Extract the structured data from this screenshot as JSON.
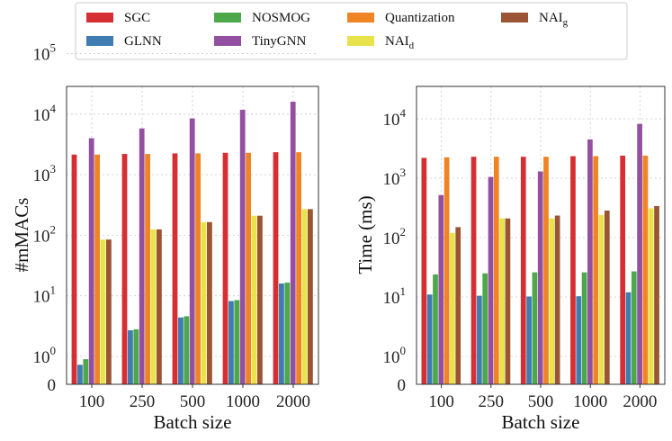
{
  "legend": [
    {
      "key": "sgc",
      "base": "SGC",
      "sub": "",
      "color": "#d62f33"
    },
    {
      "key": "glnn",
      "base": "GLNN",
      "sub": "",
      "color": "#3e7cb1"
    },
    {
      "key": "nosmog",
      "base": "NOSMOG",
      "sub": "",
      "color": "#4da84b"
    },
    {
      "key": "tinygnn",
      "base": "TinyGNN",
      "sub": "",
      "color": "#9450a0"
    },
    {
      "key": "quantization",
      "base": "Quantization",
      "sub": "",
      "color": "#f08323"
    },
    {
      "key": "nai_d",
      "base": "NAI",
      "sub": "d",
      "color": "#e8e34b"
    },
    {
      "key": "nai_g",
      "base": "NAI",
      "sub": "g",
      "color": "#9b5434"
    }
  ],
  "chart_data": [
    {
      "type": "bar",
      "title": "",
      "xlabel": "Batch size",
      "ylabel": "#mMACs",
      "yscale": "symlog",
      "ylim": [
        0,
        150000
      ],
      "yticks": [
        {
          "value": 0,
          "label": "0"
        },
        {
          "value": 1,
          "base": "10",
          "exp": "0"
        },
        {
          "value": 10,
          "base": "10",
          "exp": "1"
        },
        {
          "value": 100,
          "base": "10",
          "exp": "2"
        },
        {
          "value": 1000,
          "base": "10",
          "exp": "3"
        },
        {
          "value": 10000,
          "base": "10",
          "exp": "4"
        },
        {
          "value": 100000,
          "base": "10",
          "exp": "5"
        }
      ],
      "categories": [
        "100",
        "250",
        "500",
        "1000",
        "2000"
      ],
      "series": [
        {
          "name": "SGC",
          "values": [
            2150,
            2200,
            2250,
            2300,
            2350
          ]
        },
        {
          "name": "GLNN",
          "values": [
            0.7,
            2.7,
            4.4,
            8.2,
            16
          ]
        },
        {
          "name": "NOSMOG",
          "values": [
            0.9,
            2.8,
            4.6,
            8.5,
            16.5
          ]
        },
        {
          "name": "TinyGNN",
          "values": [
            4000,
            5800,
            8500,
            11800,
            16000
          ]
        },
        {
          "name": "Quantization",
          "values": [
            2150,
            2200,
            2250,
            2300,
            2350
          ]
        },
        {
          "name": "NAI_d",
          "values": [
            85,
            125,
            165,
            210,
            270
          ]
        },
        {
          "name": "NAI_g",
          "values": [
            85,
            125,
            165,
            210,
            270
          ]
        }
      ]
    },
    {
      "type": "bar",
      "title": "",
      "xlabel": "Batch size",
      "ylabel": "Time (ms)",
      "yscale": "symlog",
      "ylim": [
        0,
        90000
      ],
      "yticks": [
        {
          "value": 0,
          "label": "0"
        },
        {
          "value": 1,
          "base": "10",
          "exp": "0"
        },
        {
          "value": 10,
          "base": "10",
          "exp": "1"
        },
        {
          "value": 100,
          "base": "10",
          "exp": "2"
        },
        {
          "value": 1000,
          "base": "10",
          "exp": "3"
        },
        {
          "value": 10000,
          "base": "10",
          "exp": "4"
        }
      ],
      "categories": [
        "100",
        "250",
        "500",
        "1000",
        "2000"
      ],
      "series": [
        {
          "name": "SGC",
          "values": [
            2200,
            2300,
            2300,
            2350,
            2400
          ]
        },
        {
          "name": "GLNN",
          "values": [
            11,
            10.5,
            10.2,
            10.3,
            12
          ]
        },
        {
          "name": "NOSMOG",
          "values": [
            24,
            25,
            26,
            26,
            27
          ]
        },
        {
          "name": "TinyGNN",
          "values": [
            520,
            1050,
            1300,
            4500,
            8200
          ]
        },
        {
          "name": "Quantization",
          "values": [
            2250,
            2300,
            2300,
            2350,
            2400
          ]
        },
        {
          "name": "NAI_d",
          "values": [
            120,
            210,
            210,
            240,
            310
          ]
        },
        {
          "name": "NAI_g",
          "values": [
            150,
            210,
            235,
            285,
            340
          ]
        }
      ]
    }
  ]
}
